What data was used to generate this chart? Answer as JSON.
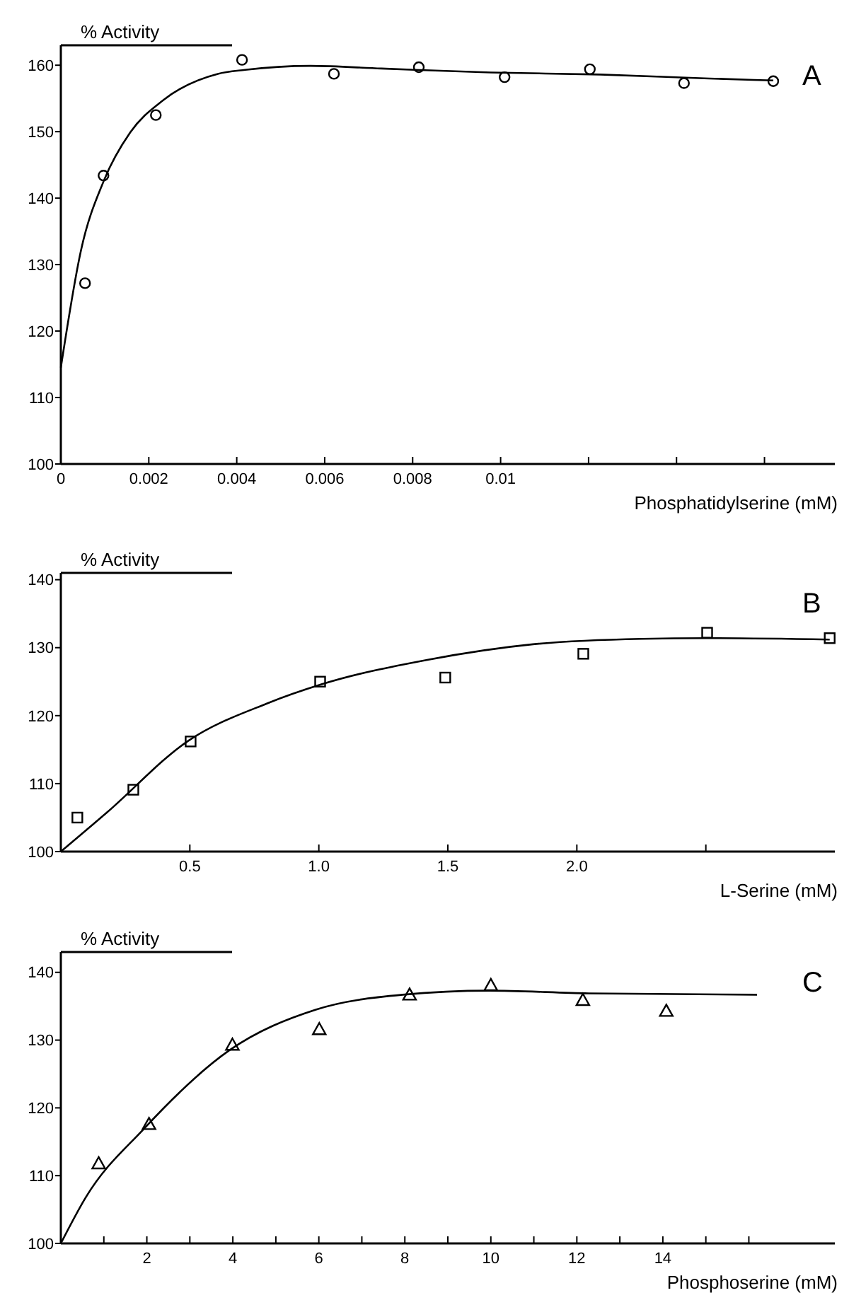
{
  "chart_data": [
    {
      "type": "scatter",
      "title": "A",
      "ylabel": "% Activity",
      "xlabel": "Phosphatidylserine (mM)",
      "xlim": [
        0,
        0.0176
      ],
      "xticks": [
        0,
        0.002,
        0.004,
        0.006,
        0.008,
        0.01,
        {
          "value": 0.012,
          "label": null
        },
        {
          "value": 0.014,
          "label": null
        },
        {
          "value": 0.016,
          "label": null
        }
      ],
      "ylim": [
        100,
        163
      ],
      "yticks": [
        100,
        110,
        120,
        130,
        140,
        150,
        160
      ],
      "series": [
        {
          "type": "scatter",
          "marker": "circle",
          "color": "#000000",
          "x": [
            0.00055,
            0.00097,
            0.00216,
            0.00412,
            0.00621,
            0.00814,
            0.01009,
            0.01203,
            0.01417,
            0.0162
          ],
          "values": [
            127.2,
            143.4,
            152.5,
            160.8,
            158.7,
            159.7,
            158.2,
            159.4,
            157.3,
            157.6
          ]
        },
        {
          "type": "line",
          "marker": "none",
          "color": "#000000",
          "x": [
            0,
            0.00046,
            0.00097,
            0.00158,
            0.00232,
            0.00357,
            0.00419,
            0.00568,
            0.00729,
            0.00978,
            0.01226,
            0.01474,
            0.0162
          ],
          "values": [
            114.5,
            132.2,
            142.5,
            149.9,
            154.7,
            158.7,
            159.3,
            159.9,
            159.5,
            158.9,
            158.6,
            158.0,
            157.7
          ]
        }
      ]
    },
    {
      "type": "scatter",
      "title": "B",
      "ylabel": "% Activity",
      "xlabel": "L-Serine (mM)",
      "xlim": [
        0,
        3.0
      ],
      "xticks": [
        0.5,
        "1.0",
        1.5,
        "2.0",
        {
          "value": 2.5,
          "label": null
        }
      ],
      "ylim": [
        100,
        141
      ],
      "yticks": [
        100,
        110,
        120,
        130,
        140
      ],
      "series": [
        {
          "type": "scatter",
          "marker": "square",
          "color": "#000000",
          "x": [
            0.064,
            0.281,
            0.503,
            1.005,
            1.49,
            2.025,
            2.505,
            2.98
          ],
          "values": [
            105.0,
            109.1,
            116.2,
            125.0,
            125.6,
            129.1,
            132.2,
            131.4
          ]
        },
        {
          "type": "line",
          "marker": "none",
          "color": "#000000",
          "x": [
            0,
            0.18,
            0.49,
            0.8,
            1.01,
            1.42,
            1.83,
            2.25,
            2.5,
            2.98
          ],
          "values": [
            100,
            105.8,
            116.2,
            121.8,
            124.6,
            128.2,
            130.5,
            131.3,
            131.4,
            131.2
          ]
        }
      ]
    },
    {
      "type": "scatter",
      "title": "C",
      "ylabel": "% Activity",
      "xlabel": "Phosphoserine (mM)",
      "xlim": [
        0,
        18
      ],
      "xticks": [
        {
          "value": 1,
          "label": null
        },
        2,
        {
          "value": 3,
          "label": null
        },
        4,
        {
          "value": 5,
          "label": null
        },
        6,
        {
          "value": 7,
          "label": null
        },
        8,
        {
          "value": 9,
          "label": null
        },
        10,
        {
          "value": 11,
          "label": null
        },
        12,
        {
          "value": 13,
          "label": null
        },
        14,
        {
          "value": 15,
          "label": null
        },
        {
          "value": 16,
          "label": null
        }
      ],
      "ylim": [
        100,
        143
      ],
      "yticks": [
        100,
        110,
        120,
        130,
        140
      ],
      "series": [
        {
          "type": "scatter",
          "marker": "triangle",
          "color": "#000000",
          "x": [
            0.88,
            2.05,
            3.99,
            6.01,
            8.11,
            10.0,
            12.14,
            14.08
          ],
          "values": [
            111.8,
            117.6,
            129.3,
            131.6,
            136.7,
            138.1,
            135.9,
            134.3
          ]
        },
        {
          "type": "line",
          "marker": "none",
          "color": "#000000",
          "x": [
            0,
            0.58,
            1.93,
            3.92,
            5.93,
            7.95,
            9.96,
            12.28,
            16.19
          ],
          "values": [
            100,
            106.8,
            116.9,
            128.5,
            134.5,
            136.7,
            137.3,
            136.9,
            136.7
          ]
        }
      ]
    }
  ]
}
